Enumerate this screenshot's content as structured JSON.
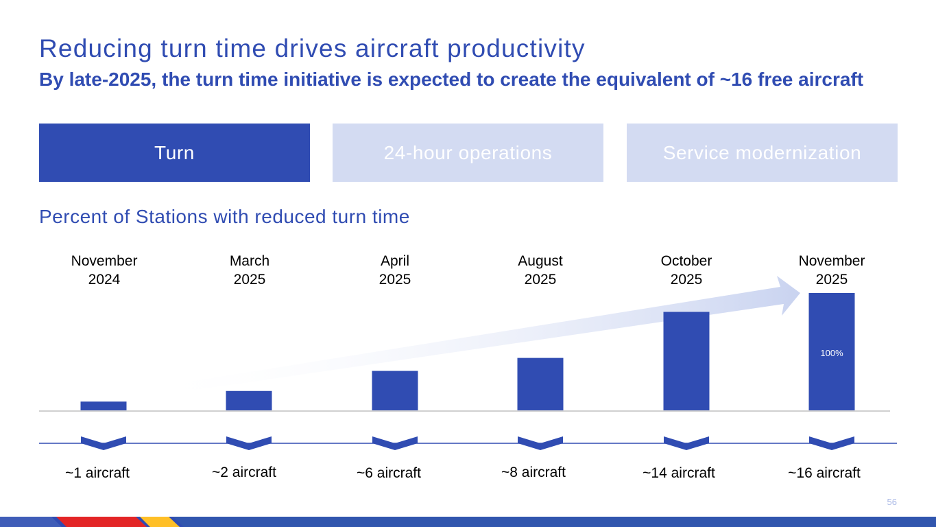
{
  "header": {
    "title": "Reducing turn time drives aircraft productivity",
    "subtitle": "By late-2025, the turn time initiative is expected to create the equivalent of ~16 free aircraft"
  },
  "tabs": [
    {
      "label": "Turn",
      "active": true
    },
    {
      "label": "24-hour operations",
      "active": false
    },
    {
      "label": "Service modernization",
      "active": false
    }
  ],
  "section_title": "Percent of Stations with reduced turn time",
  "chart_data": {
    "type": "bar",
    "title": "Percent of Stations with reduced turn time",
    "categories": [
      {
        "month": "November",
        "year": "2024"
      },
      {
        "month": "March",
        "year": "2025"
      },
      {
        "month": "April",
        "year": "2025"
      },
      {
        "month": "August",
        "year": "2025"
      },
      {
        "month": "October",
        "year": "2025"
      },
      {
        "month": "November",
        "year": "2025"
      }
    ],
    "values": [
      8,
      17,
      34,
      45,
      84,
      100
    ],
    "unit": "%",
    "data_labels": [
      "",
      "",
      "",
      "",
      "",
      "100%"
    ],
    "aircraft_equivalent": [
      "~1 aircraft",
      "~2 aircraft",
      "~6 aircraft",
      "~8 aircraft",
      "~14 aircraft",
      "~16 aircraft"
    ],
    "ylim": [
      0,
      100
    ],
    "bar_color": "#304CB2",
    "trend_arrow_color": "#C9D3F0"
  },
  "footer": {
    "page_number": "56",
    "stripe_colors": [
      "#E32526",
      "#FFBF27",
      "#304CB2"
    ]
  }
}
